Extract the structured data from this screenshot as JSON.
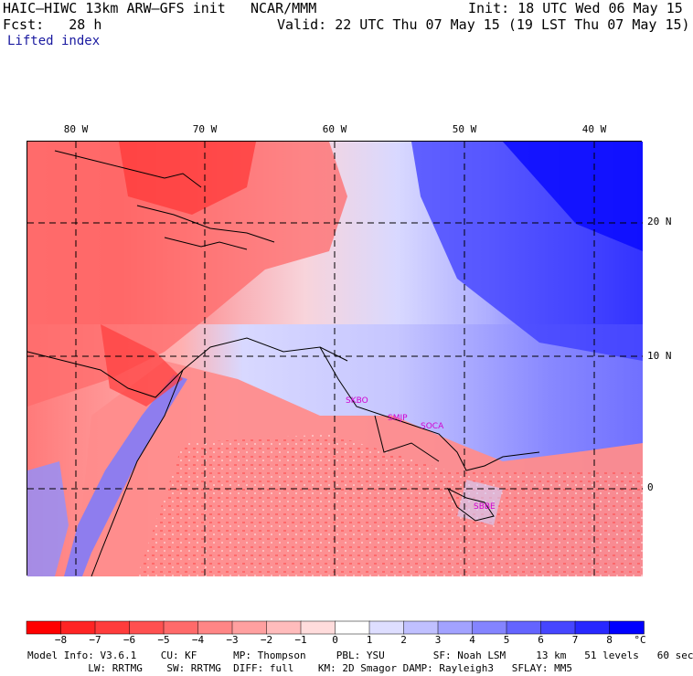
{
  "header": {
    "model": "HAIC–HIWC 13km ARW–GFS init",
    "org": "NCAR/MMM",
    "init": "Init: 18 UTC Wed 06 May 15",
    "fcst": "Fcst:   28 h",
    "valid": "Valid: 22 UTC Thu 07 May 15 (19 LST Thu 07 May 15)",
    "field": "Lifted index"
  },
  "map": {
    "lon_labels": [
      "80 W",
      "70 W",
      "60 W",
      "50 W",
      "40 W"
    ],
    "lat_labels": [
      "20 N",
      "10 N",
      "0"
    ],
    "stations": [
      "SKBO",
      "SMJP",
      "SOCA",
      "SBBE"
    ],
    "station_color": "#d000d0"
  },
  "colorbar": {
    "unit": "°C",
    "ticks": [
      "−8",
      "−7",
      "−6",
      "−5",
      "−4",
      "−3",
      "−2",
      "−1",
      "0",
      "1",
      "2",
      "3",
      "4",
      "5",
      "6",
      "7",
      "8"
    ],
    "colors": [
      "#ff0000",
      "#ff2424",
      "#ff3c3c",
      "#ff5050",
      "#ff6a6a",
      "#ff8686",
      "#ffa0a0",
      "#ffbcbc",
      "#ffdcdc",
      "#ffffff",
      "#dedeff",
      "#c0c0ff",
      "#a2a2ff",
      "#8484ff",
      "#6464ff",
      "#4646ff",
      "#2828ff",
      "#0000ff"
    ]
  },
  "footer": {
    "line1": "Model Info: V3.6.1    CU: KF      MP: Thompson     PBL: YSU        SF: Noah LSM     13 km   51 levels   60 sec",
    "line2": "          LW: RRTMG    SW: RRTMG  DIFF: full    KM: 2D Smagor DAMP: Rayleigh3   SFLAY: MM5"
  }
}
